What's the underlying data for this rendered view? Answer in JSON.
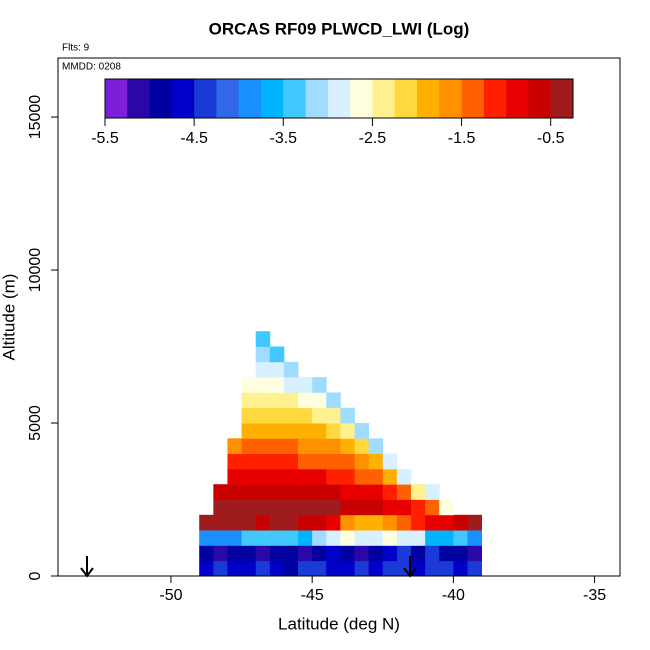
{
  "chart_data": {
    "type": "heatmap",
    "title": "ORCAS RF09 PLWCD_LWI (Log)",
    "flights_label": "Flts: 9",
    "date_label": "MMDD: 0208",
    "x_label": "Latitude (deg N)",
    "y_label": "Altitude (m)",
    "xlim": [
      -54,
      -34.1
    ],
    "xticks": [
      -50,
      -45,
      -40,
      -35
    ],
    "ylim": [
      0,
      16930
    ],
    "yticks": [
      0,
      5000,
      10000,
      15000
    ],
    "x_bins": [
      -49,
      -48.5,
      -48,
      -47.5,
      -47,
      -46.5,
      -46,
      -45.5,
      -45,
      -44.5,
      -44,
      -43.5,
      -43,
      -42.5,
      -42,
      -41.5,
      -41,
      -40.5,
      -40,
      -39.5,
      -39
    ],
    "y_bins": [
      0,
      500,
      1000,
      1500,
      2000,
      2500,
      3000,
      3500,
      4000,
      4500,
      5000,
      5500,
      6000,
      6500,
      7000,
      7500,
      8000
    ],
    "z": [
      [
        -4.6,
        -4.4,
        -4.6,
        -4.7,
        -4.5,
        -4.6,
        -4.8,
        -4.5,
        -4.4,
        -4.6,
        -4.7,
        -4.5,
        -4.6,
        -4.4,
        -4.5,
        -4.6,
        -4.3,
        -4.5,
        -4.6,
        -4.4
      ],
      [
        -4.9,
        -5.1,
        -5.0,
        -4.8,
        -5.2,
        -5.0,
        -4.9,
        -5.1,
        -5.0,
        -4.7,
        -5.0,
        -5.1,
        -4.9,
        -4.6,
        -4.4,
        -4.8,
        -4.5,
        -4.9,
        -5.0,
        -5.2
      ],
      [
        -4.0,
        -3.8,
        -3.9,
        -3.4,
        -3.5,
        -3.3,
        -3.4,
        -3.6,
        -3.2,
        -2.8,
        -2.7,
        -2.8,
        -2.9,
        -2.7,
        -2.8,
        -2.9,
        -3.6,
        -3.7,
        -3.5,
        -3.8
      ],
      [
        -0.5,
        -0.5,
        -0.4,
        -0.5,
        -0.6,
        -0.5,
        -0.5,
        -0.6,
        -0.7,
        -0.9,
        -1.6,
        -1.9,
        -1.8,
        -1.7,
        -1.5,
        -1.2,
        -1.0,
        -0.9,
        -0.6,
        -0.5
      ],
      [
        null,
        -0.5,
        -0.4,
        -0.4,
        -0.4,
        -0.4,
        -0.5,
        -0.5,
        -0.5,
        -0.5,
        -0.6,
        -0.6,
        -0.7,
        -0.8,
        -0.9,
        -1.1,
        -1.4,
        -2.6,
        null,
        null
      ],
      [
        null,
        -0.6,
        -0.6,
        -0.6,
        -0.6,
        -0.6,
        -0.6,
        -0.7,
        -0.7,
        -0.7,
        -0.8,
        -0.9,
        -1.0,
        -1.2,
        -1.5,
        -2.3,
        -3.0,
        null,
        null,
        null
      ],
      [
        null,
        null,
        -0.9,
        -0.9,
        -0.9,
        -0.9,
        -0.9,
        -1.0,
        -1.0,
        -1.1,
        -1.2,
        -1.3,
        -1.5,
        -1.8,
        -2.9,
        null,
        null,
        null,
        null,
        null
      ],
      [
        null,
        null,
        -1.2,
        -1.2,
        -1.2,
        -1.2,
        -1.2,
        -1.3,
        -1.3,
        -1.4,
        -1.5,
        -1.7,
        -2.0,
        -3.0,
        null,
        null,
        null,
        null,
        null,
        null
      ],
      [
        null,
        null,
        -1.6,
        -1.5,
        -1.5,
        -1.5,
        -1.5,
        -1.6,
        -1.6,
        -1.7,
        -1.9,
        -2.2,
        -3.1,
        null,
        null,
        null,
        null,
        null,
        null,
        null
      ],
      [
        null,
        null,
        null,
        -1.8,
        -1.8,
        -1.8,
        -1.8,
        -1.9,
        -2.0,
        -2.1,
        -2.3,
        -3.1,
        null,
        null,
        null,
        null,
        null,
        null,
        null,
        null
      ],
      [
        null,
        null,
        null,
        -2.1,
        -2.1,
        -2.1,
        -2.1,
        -2.2,
        -2.3,
        -2.5,
        -3.2,
        null,
        null,
        null,
        null,
        null,
        null,
        null,
        null,
        null
      ],
      [
        null,
        null,
        null,
        -2.4,
        -2.4,
        -2.4,
        -2.5,
        -2.6,
        -2.7,
        -3.2,
        null,
        null,
        null,
        null,
        null,
        null,
        null,
        null,
        null,
        null
      ],
      [
        null,
        null,
        null,
        -2.7,
        -2.7,
        -2.7,
        -2.8,
        -2.9,
        -3.2,
        null,
        null,
        null,
        null,
        null,
        null,
        null,
        null,
        null,
        null,
        null
      ],
      [
        null,
        null,
        null,
        null,
        -2.9,
        -2.9,
        -3.2,
        null,
        null,
        null,
        null,
        null,
        null,
        null,
        null,
        null,
        null,
        null,
        null,
        null
      ],
      [
        null,
        null,
        null,
        null,
        -3.1,
        -3.3,
        null,
        null,
        null,
        null,
        null,
        null,
        null,
        null,
        null,
        null,
        null,
        null,
        null,
        null
      ],
      [
        null,
        null,
        null,
        null,
        -3.3,
        null,
        null,
        null,
        null,
        null,
        null,
        null,
        null,
        null,
        null,
        null,
        null,
        null,
        null,
        null
      ]
    ],
    "colorbar": {
      "zlim": [
        -5.5,
        -0.25
      ],
      "ticks": [
        -5.5,
        -4.5,
        -3.5,
        -2.5,
        -1.5,
        -0.5
      ],
      "colors": [
        "#7b1fd8",
        "#2a08a8",
        "#0000a0",
        "#0000c8",
        "#1a3ad8",
        "#3068e8",
        "#1890ff",
        "#00b4ff",
        "#40c8ff",
        "#a0dcff",
        "#d8f0ff",
        "#ffffe0",
        "#fff090",
        "#ffd840",
        "#ffb000",
        "#ff9000",
        "#ff6000",
        "#ff2000",
        "#e80000",
        "#c80000",
        "#a01c1c"
      ]
    }
  }
}
